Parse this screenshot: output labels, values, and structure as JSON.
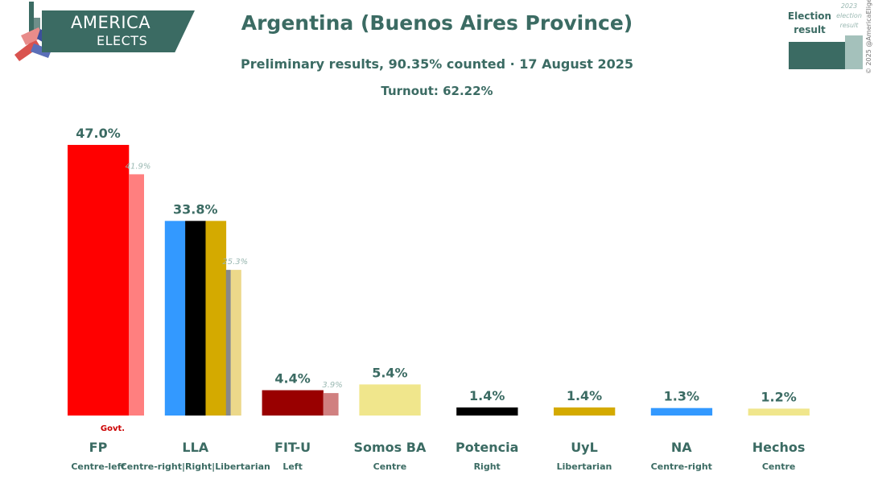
{
  "header": {
    "logo_line1": "AMERICA",
    "logo_line2": "ELECTS",
    "title": "Argentina (Buenos Aires Province)",
    "subtitle": "Preliminary results, 90.35% counted · 17 August 2025",
    "turnout": "Turnout: 62.22%"
  },
  "legend": {
    "current_label": "Election result",
    "previous_label": "2023 election result"
  },
  "copyright": "© 2025 @AmericaElige",
  "colors": {
    "text": "#3b6b63",
    "muted": "#9ab8b2",
    "govt": "#cc0000"
  },
  "chart_data": {
    "type": "bar",
    "ylim": [
      0,
      50
    ],
    "categories": [
      "FP",
      "LLA",
      "FIT-U",
      "Somos BA",
      "Potencia",
      "UyL",
      "NA",
      "Hechos"
    ],
    "subtitles": [
      "Centre-left",
      "Centre-right|Right|Libertarian",
      "Left",
      "Centre",
      "Right",
      "Libertarian",
      "Centre-right",
      "Centre"
    ],
    "series": [
      {
        "name": "Election result",
        "values": [
          47.0,
          33.8,
          4.4,
          5.4,
          1.4,
          1.4,
          1.3,
          1.2
        ],
        "labels": [
          "47.0%",
          "33.8%",
          "4.4%",
          "5.4%",
          "1.4%",
          "1.4%",
          "1.3%",
          "1.2%"
        ]
      },
      {
        "name": "2023 election result",
        "values": [
          41.9,
          25.3,
          3.9,
          null,
          null,
          null,
          null,
          null
        ],
        "labels": [
          "41.9%",
          "25.3%",
          "3.9%",
          null,
          null,
          null,
          null,
          null
        ]
      }
    ],
    "bar_colors": [
      [
        "#ff0000"
      ],
      [
        "#3399ff",
        "#000000",
        "#d4aa00"
      ],
      [
        "#990000"
      ],
      [
        "#f0e68c"
      ],
      [
        "#000000"
      ],
      [
        "#d4aa00"
      ],
      [
        "#3399ff"
      ],
      [
        "#f0e68c"
      ]
    ],
    "previous_bar_colors": [
      [
        "#ff7f7f"
      ],
      [
        "#888888",
        "#ecd88a"
      ],
      [
        "#d08080"
      ],
      null,
      null,
      null,
      null,
      null
    ],
    "annotations": [
      {
        "category": "FP",
        "text": "Govt."
      }
    ]
  }
}
